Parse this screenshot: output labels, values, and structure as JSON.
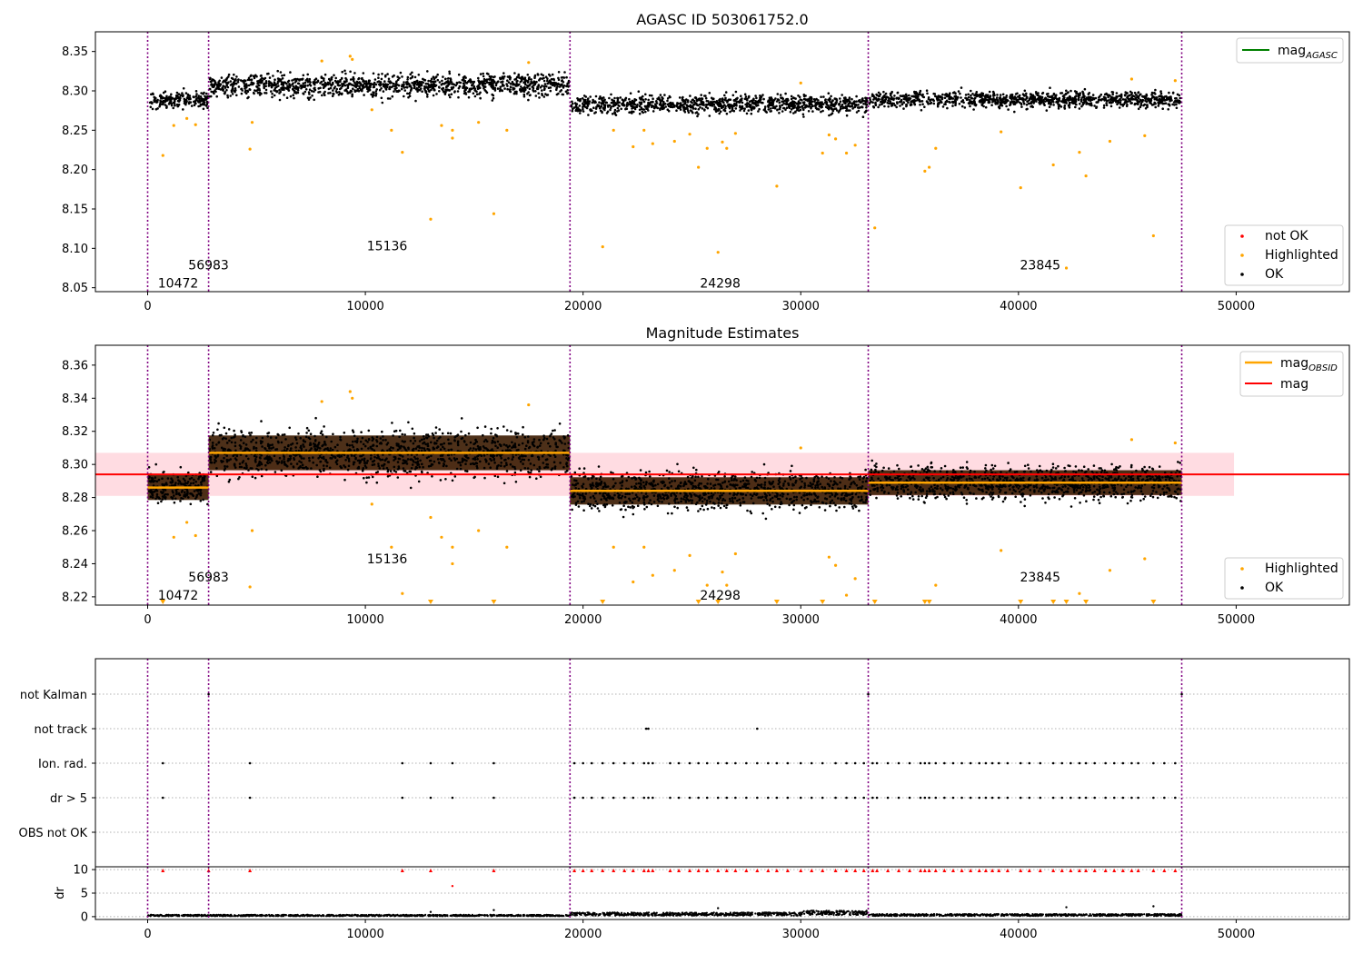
{
  "figure": {
    "x_ticks": [
      0,
      10000,
      20000,
      30000,
      40000,
      50000
    ],
    "x_tick_labels": [
      "0",
      "10000",
      "20000",
      "30000",
      "40000",
      "50000"
    ],
    "xlim": [
      -2400,
      55200
    ],
    "obs_boundaries": [
      0,
      2800,
      19400,
      33100,
      47500
    ],
    "colors": {
      "ok": "#000000",
      "highlighted": "#ffa500",
      "not_ok": "#ff0000",
      "boundary": "#800080",
      "mag_line": "#ff0000",
      "mag_band": "#ffc0cb",
      "mag_obsid": "#ffa500",
      "mag_agasc": "#008000"
    }
  },
  "chart_data": [
    {
      "type": "scatter",
      "title": "AGASC ID 503061752.0",
      "ylim": [
        8.045,
        8.375
      ],
      "y_ticks": [
        8.05,
        8.1,
        8.15,
        8.2,
        8.25,
        8.3,
        8.35
      ],
      "y_tick_labels": [
        "8.05",
        "8.10",
        "8.15",
        "8.20",
        "8.25",
        "8.30",
        "8.35"
      ],
      "legend_upper": {
        "placement": "top-right",
        "entries": [
          "mag_AGASC"
        ],
        "main": "mag",
        "sub": "AGASC"
      },
      "legend_lower": {
        "placement": "bottom-right",
        "entries": [
          "not OK",
          "Highlighted",
          "OK"
        ]
      },
      "obsid_labels": [
        {
          "text": "10472",
          "x": 1400,
          "y": 8.056
        },
        {
          "text": "56983",
          "x": 2800,
          "y": 8.079
        },
        {
          "text": "15136",
          "x": 11000,
          "y": 8.103
        },
        {
          "text": "24298",
          "x": 26300,
          "y": 8.056
        },
        {
          "text": "23845",
          "x": 41000,
          "y": 8.079
        }
      ],
      "obs_segments": [
        {
          "x0": 0,
          "x1": 2800,
          "mean": 8.288,
          "spread": 0.01
        },
        {
          "x0": 2800,
          "x1": 19400,
          "mean": 8.307,
          "spread": 0.014
        },
        {
          "x0": 19400,
          "x1": 33100,
          "mean": 8.283,
          "spread": 0.011
        },
        {
          "x0": 33100,
          "x1": 47500,
          "mean": 8.289,
          "spread": 0.01
        }
      ],
      "highlighted_points": [
        [
          700,
          8.218
        ],
        [
          1200,
          8.256
        ],
        [
          1800,
          8.265
        ],
        [
          2200,
          8.257
        ],
        [
          4700,
          8.226
        ],
        [
          4800,
          8.26
        ],
        [
          8000,
          8.338
        ],
        [
          9300,
          8.344
        ],
        [
          9400,
          8.34
        ],
        [
          10300,
          8.276
        ],
        [
          11200,
          8.25
        ],
        [
          11700,
          8.222
        ],
        [
          13000,
          8.137
        ],
        [
          13500,
          8.256
        ],
        [
          14000,
          8.25
        ],
        [
          14000,
          8.24
        ],
        [
          15200,
          8.26
        ],
        [
          15900,
          8.144
        ],
        [
          16500,
          8.25
        ],
        [
          17500,
          8.336
        ],
        [
          20900,
          8.102
        ],
        [
          21400,
          8.25
        ],
        [
          22300,
          8.229
        ],
        [
          22800,
          8.25
        ],
        [
          23200,
          8.233
        ],
        [
          24200,
          8.236
        ],
        [
          24900,
          8.245
        ],
        [
          25300,
          8.203
        ],
        [
          25700,
          8.227
        ],
        [
          26200,
          8.095
        ],
        [
          26400,
          8.235
        ],
        [
          26600,
          8.227
        ],
        [
          27000,
          8.246
        ],
        [
          28900,
          8.179
        ],
        [
          30000,
          8.31
        ],
        [
          31000,
          8.221
        ],
        [
          31300,
          8.244
        ],
        [
          31600,
          8.239
        ],
        [
          32100,
          8.221
        ],
        [
          32500,
          8.231
        ],
        [
          33400,
          8.126
        ],
        [
          35700,
          8.198
        ],
        [
          35900,
          8.203
        ],
        [
          36200,
          8.227
        ],
        [
          39200,
          8.248
        ],
        [
          40100,
          8.177
        ],
        [
          41600,
          8.206
        ],
        [
          42200,
          8.075
        ],
        [
          42800,
          8.222
        ],
        [
          43100,
          8.192
        ],
        [
          44200,
          8.236
        ],
        [
          45200,
          8.315
        ],
        [
          45800,
          8.243
        ],
        [
          46200,
          8.116
        ],
        [
          47200,
          8.313
        ]
      ]
    },
    {
      "type": "scatter",
      "title": "Magnitude Estimates",
      "ylim": [
        8.215,
        8.372
      ],
      "y_ticks": [
        8.22,
        8.24,
        8.26,
        8.28,
        8.3,
        8.32,
        8.34,
        8.36
      ],
      "y_tick_labels": [
        "8.22",
        "8.24",
        "8.26",
        "8.28",
        "8.30",
        "8.32",
        "8.34",
        "8.36"
      ],
      "legend_upper": {
        "placement": "top-right",
        "entries": [
          "mag_OBSID",
          "mag"
        ],
        "main": "mag",
        "sub": "OBSID",
        "second": "mag"
      },
      "legend_lower": {
        "placement": "bottom-right",
        "entries": [
          "Highlighted",
          "OK"
        ]
      },
      "mag": {
        "value": 8.294,
        "band": [
          8.281,
          8.307
        ],
        "x0": 0,
        "x1": 49900
      },
      "obsid_labels": [
        {
          "text": "10472",
          "x": 1400,
          "y": 8.221
        },
        {
          "text": "56983",
          "x": 2800,
          "y": 8.232
        },
        {
          "text": "15136",
          "x": 11000,
          "y": 8.243
        },
        {
          "text": "24298",
          "x": 26300,
          "y": 8.221
        },
        {
          "text": "23845",
          "x": 41000,
          "y": 8.232
        }
      ],
      "obs_segments": [
        {
          "x0": 0,
          "x1": 2800,
          "mean": 8.286,
          "spread": 0.01
        },
        {
          "x0": 2800,
          "x1": 19400,
          "mean": 8.307,
          "spread": 0.014
        },
        {
          "x0": 19400,
          "x1": 33100,
          "mean": 8.284,
          "spread": 0.011
        },
        {
          "x0": 33100,
          "x1": 47500,
          "mean": 8.289,
          "spread": 0.01
        }
      ],
      "highlighted_points": [
        [
          1200,
          8.256
        ],
        [
          1800,
          8.265
        ],
        [
          2200,
          8.257
        ],
        [
          4700,
          8.226
        ],
        [
          4800,
          8.26
        ],
        [
          8000,
          8.338
        ],
        [
          9300,
          8.344
        ],
        [
          9400,
          8.34
        ],
        [
          10300,
          8.276
        ],
        [
          11200,
          8.25
        ],
        [
          11700,
          8.222
        ],
        [
          13000,
          8.268
        ],
        [
          13500,
          8.256
        ],
        [
          14000,
          8.25
        ],
        [
          14000,
          8.24
        ],
        [
          15200,
          8.26
        ],
        [
          16500,
          8.25
        ],
        [
          17500,
          8.336
        ],
        [
          21400,
          8.25
        ],
        [
          22300,
          8.229
        ],
        [
          22800,
          8.25
        ],
        [
          23200,
          8.233
        ],
        [
          24200,
          8.236
        ],
        [
          24900,
          8.245
        ],
        [
          25700,
          8.227
        ],
        [
          26400,
          8.235
        ],
        [
          26600,
          8.227
        ],
        [
          27000,
          8.246
        ],
        [
          30000,
          8.31
        ],
        [
          31300,
          8.244
        ],
        [
          31600,
          8.239
        ],
        [
          32100,
          8.221
        ],
        [
          32500,
          8.231
        ],
        [
          36200,
          8.227
        ],
        [
          39200,
          8.248
        ],
        [
          42800,
          8.222
        ],
        [
          44200,
          8.236
        ],
        [
          45200,
          8.315
        ],
        [
          45800,
          8.243
        ],
        [
          47200,
          8.313
        ]
      ],
      "clipped_points_x": [
        700,
        13000,
        15900,
        20900,
        25300,
        26200,
        28900,
        31000,
        33400,
        35700,
        35900,
        40100,
        41600,
        42200,
        43100,
        46200
      ]
    },
    {
      "type": "scatter",
      "categories": [
        "not Kalman",
        "not track",
        "Ion. rad.",
        "dr > 5",
        "OBS not OK"
      ],
      "flag_points": {
        "not Kalman": [
          2800,
          33100,
          47500
        ],
        "not track": [
          22900,
          23000,
          28000
        ],
        "Ion. rad.": [
          700,
          4700,
          11700,
          13000,
          14000,
          15900,
          19600,
          20000,
          20400,
          20900,
          21400,
          21900,
          22300,
          22800,
          23000,
          23200,
          24000,
          24400,
          24900,
          25300,
          25700,
          26200,
          26600,
          27000,
          27500,
          28000,
          28500,
          28900,
          29400,
          30000,
          30500,
          31000,
          31600,
          32100,
          32500,
          32900,
          33300,
          33500,
          34000,
          34500,
          35000,
          35500,
          35700,
          35900,
          36200,
          36600,
          37000,
          37400,
          37800,
          38200,
          38500,
          38800,
          39100,
          39500,
          40100,
          40500,
          41000,
          41600,
          42000,
          42400,
          42800,
          43100,
          43500,
          44000,
          44400,
          44800,
          45200,
          45500,
          46200,
          46700,
          47200
        ],
        "dr > 5": [
          700,
          4700,
          11700,
          13000,
          14000,
          15900,
          19600,
          20000,
          20400,
          20900,
          21400,
          21900,
          22300,
          22800,
          23000,
          23200,
          24000,
          24400,
          24900,
          25300,
          25700,
          26200,
          26600,
          27000,
          27500,
          28000,
          28500,
          28900,
          29400,
          30000,
          30500,
          31000,
          31600,
          32100,
          32500,
          32900,
          33300,
          33500,
          34000,
          34500,
          35000,
          35500,
          35700,
          35900,
          36200,
          36600,
          37000,
          37400,
          37800,
          38200,
          38500,
          38800,
          39100,
          39500,
          40100,
          40500,
          41000,
          41600,
          42000,
          42400,
          42800,
          43100,
          43500,
          44000,
          44400,
          44800,
          45200,
          45500,
          46200,
          46700,
          47200
        ],
        "OBS not OK": []
      }
    },
    {
      "type": "scatter",
      "ylabel": "dr",
      "ylim": [
        -0.6,
        10.6
      ],
      "y_ticks": [
        0,
        5,
        10
      ],
      "y_tick_labels": [
        "0",
        "5",
        "10"
      ],
      "clipped_points_x": [
        700,
        2800,
        4700,
        11700,
        13000,
        15900,
        19600,
        20000,
        20400,
        20900,
        21400,
        21900,
        22300,
        22800,
        23000,
        23200,
        24000,
        24400,
        24900,
        25300,
        25700,
        26200,
        26600,
        27000,
        27500,
        28000,
        28500,
        28900,
        29400,
        30000,
        30500,
        31000,
        31600,
        32100,
        32500,
        32900,
        33300,
        33500,
        34000,
        34500,
        35000,
        35500,
        35700,
        35900,
        36200,
        36600,
        37000,
        37400,
        37800,
        38200,
        38500,
        38800,
        39100,
        39500,
        40100,
        40500,
        41000,
        41600,
        42000,
        42400,
        42800,
        43100,
        43500,
        44000,
        44400,
        44800,
        45200,
        45500,
        46200,
        46700,
        47200
      ],
      "outlier_points": [
        [
          14000,
          6.5
        ],
        [
          13000,
          1.0
        ],
        [
          15900,
          1.4
        ],
        [
          26200,
          1.8
        ],
        [
          42200,
          2.0
        ],
        [
          46200,
          2.2
        ]
      ],
      "baseline_points_level": 0.35,
      "baseline_segment_levels": [
        {
          "x0": 0,
          "x1": 19400,
          "level": 0.25
        },
        {
          "x0": 19400,
          "x1": 30000,
          "level": 0.55
        },
        {
          "x0": 30000,
          "x1": 33100,
          "level": 0.8
        },
        {
          "x0": 33100,
          "x1": 47500,
          "level": 0.35
        }
      ]
    }
  ]
}
